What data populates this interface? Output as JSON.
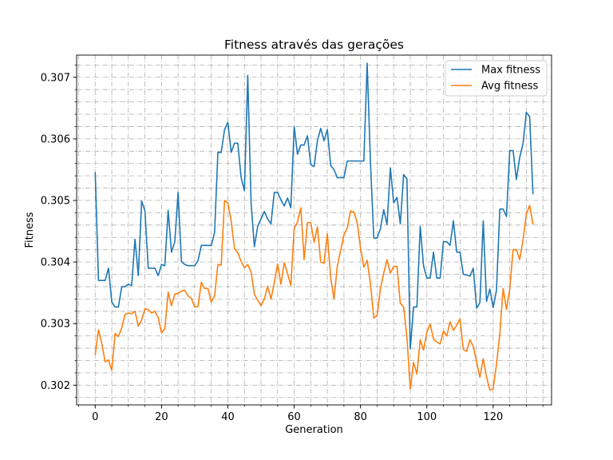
{
  "chart_data": {
    "type": "line",
    "title": "Fitness através das gerações",
    "xlabel": "Generation",
    "ylabel": "Fitness",
    "xlim": [
      -5.6,
      137.6
    ],
    "ylim": [
      0.30168,
      0.30736
    ],
    "xticks": [
      0,
      20,
      40,
      60,
      80,
      100,
      120
    ],
    "xminor_step": 5,
    "yticks": [
      0.302,
      0.303,
      0.304,
      0.305,
      0.306,
      0.307
    ],
    "yminor_step": 0.0002,
    "grid": true,
    "legend_placement": "top-right",
    "series": [
      {
        "name": "Max fitness",
        "color": "#1f77b4",
        "values": [
          0.30546,
          0.3037,
          0.3037,
          0.3037,
          0.3039,
          0.30335,
          0.30327,
          0.30327,
          0.3036,
          0.3036,
          0.30364,
          0.30362,
          0.30437,
          0.30378,
          0.30499,
          0.30483,
          0.3039,
          0.3039,
          0.3039,
          0.30378,
          0.30396,
          0.30394,
          0.30484,
          0.30416,
          0.30433,
          0.30513,
          0.30401,
          0.30396,
          0.30394,
          0.30394,
          0.30394,
          0.30402,
          0.30427,
          0.30427,
          0.30427,
          0.30427,
          0.30448,
          0.30578,
          0.30578,
          0.30615,
          0.30627,
          0.30578,
          0.30593,
          0.30593,
          0.30537,
          0.30516,
          0.30703,
          0.30496,
          0.30425,
          0.30458,
          0.3047,
          0.30482,
          0.3047,
          0.30462,
          0.30513,
          0.30513,
          0.30501,
          0.30491,
          0.30504,
          0.30488,
          0.3062,
          0.30575,
          0.3059,
          0.3059,
          0.30605,
          0.30558,
          0.30555,
          0.30597,
          0.30617,
          0.30597,
          0.30615,
          0.30557,
          0.3055,
          0.30537,
          0.30537,
          0.30537,
          0.30564,
          0.30564,
          0.30564,
          0.30564,
          0.30564,
          0.30564,
          0.30723,
          0.30562,
          0.30439,
          0.30439,
          0.30454,
          0.30485,
          0.30461,
          0.30553,
          0.30496,
          0.30505,
          0.30462,
          0.30542,
          0.30535,
          0.30259,
          0.30327,
          0.30327,
          0.30458,
          0.30394,
          0.30374,
          0.30374,
          0.30416,
          0.30374,
          0.30374,
          0.30433,
          0.30433,
          0.30427,
          0.30467,
          0.30416,
          0.30416,
          0.3038,
          0.30379,
          0.30377,
          0.3039,
          0.30325,
          0.30334,
          0.30467,
          0.30336,
          0.30356,
          0.30326,
          0.30354,
          0.30486,
          0.30486,
          0.30474,
          0.30581,
          0.30581,
          0.30534,
          0.3057,
          0.30592,
          0.30643,
          0.30636,
          0.3051
        ]
      },
      {
        "name": "Avg fitness",
        "color": "#ff7f0e",
        "values": [
          0.30249,
          0.3029,
          0.30267,
          0.30238,
          0.30241,
          0.30224,
          0.30284,
          0.30279,
          0.30293,
          0.30315,
          0.30317,
          0.30316,
          0.3032,
          0.30296,
          0.30306,
          0.30324,
          0.30323,
          0.30317,
          0.3032,
          0.3031,
          0.30285,
          0.30292,
          0.30351,
          0.30329,
          0.30348,
          0.30349,
          0.30353,
          0.30354,
          0.30345,
          0.30341,
          0.30327,
          0.30328,
          0.30367,
          0.30357,
          0.30357,
          0.30335,
          0.30345,
          0.30396,
          0.30395,
          0.305,
          0.30496,
          0.30467,
          0.30422,
          0.30415,
          0.30401,
          0.30391,
          0.30396,
          0.30384,
          0.30348,
          0.30338,
          0.30329,
          0.3034,
          0.30361,
          0.3034,
          0.30366,
          0.30397,
          0.30364,
          0.30399,
          0.30381,
          0.30362,
          0.30455,
          0.30465,
          0.30488,
          0.30404,
          0.30464,
          0.30464,
          0.30432,
          0.30457,
          0.304,
          0.30398,
          0.30446,
          0.30375,
          0.3034,
          0.30393,
          0.30419,
          0.30444,
          0.30455,
          0.30483,
          0.30481,
          0.30464,
          0.30423,
          0.30392,
          0.30403,
          0.30365,
          0.30309,
          0.30313,
          0.30357,
          0.30382,
          0.30404,
          0.30382,
          0.30393,
          0.30393,
          0.30333,
          0.30327,
          0.30278,
          0.30194,
          0.30237,
          0.30218,
          0.30274,
          0.30257,
          0.30286,
          0.30299,
          0.30275,
          0.3027,
          0.30267,
          0.30288,
          0.3028,
          0.30303,
          0.30289,
          0.30297,
          0.30308,
          0.30258,
          0.30255,
          0.30274,
          0.30263,
          0.30238,
          0.30213,
          0.30243,
          0.30213,
          0.30192,
          0.30194,
          0.30234,
          0.30283,
          0.30357,
          0.30323,
          0.30356,
          0.3042,
          0.3042,
          0.30404,
          0.30436,
          0.30478,
          0.30492,
          0.30461
        ]
      }
    ]
  }
}
